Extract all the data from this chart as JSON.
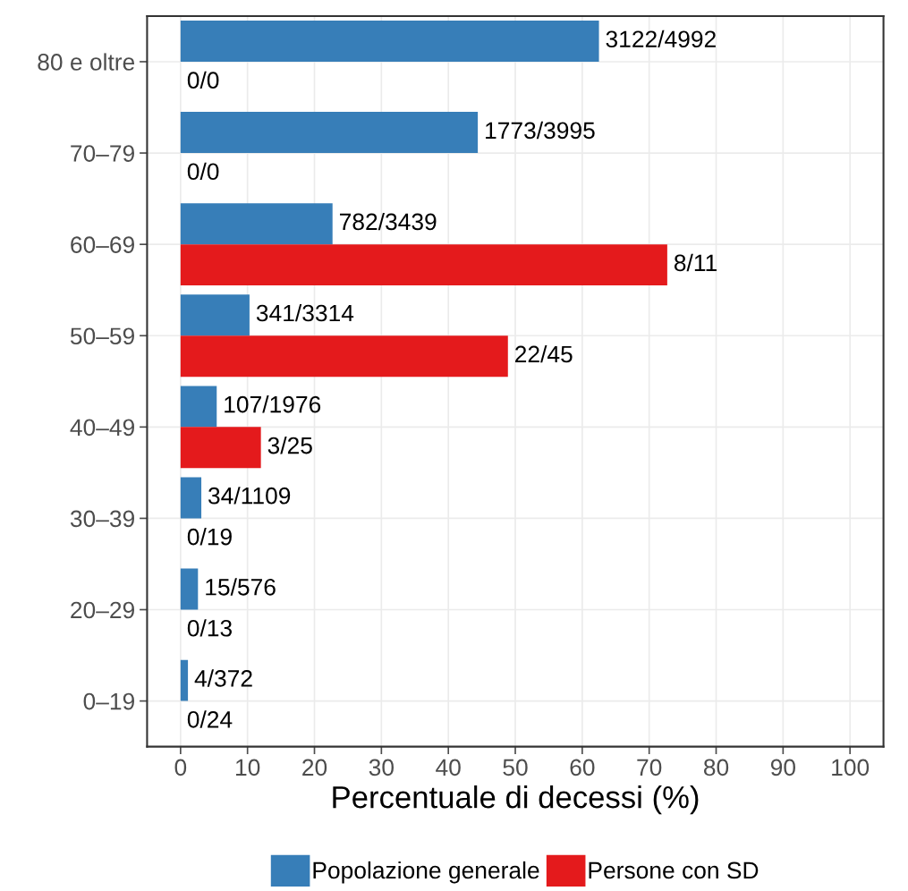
{
  "chart_data": {
    "type": "bar",
    "orientation": "horizontal",
    "xlabel": "Percentuale di decessi (%)",
    "categories": [
      "80 e oltre",
      "70–79",
      "60–69",
      "50–59",
      "40–49",
      "30–39",
      "20–29",
      "0–19"
    ],
    "series": [
      {
        "name": "Popolazione generale",
        "color": "#377eb8",
        "values": [
          62.5,
          44.4,
          22.7,
          10.3,
          5.4,
          3.1,
          2.6,
          1.1
        ],
        "value_labels": [
          "3122/4992",
          "1773/3995",
          "782/3439",
          "341/3314",
          "107/1976",
          "34/1109",
          "15/576",
          "4/372"
        ]
      },
      {
        "name": "Persone con SD",
        "color": "#e41a1c",
        "values": [
          0,
          0,
          72.7,
          48.9,
          12,
          0,
          0,
          0
        ],
        "value_labels": [
          "0/0",
          "0/0",
          "8/11",
          "22/45",
          "3/25",
          "0/19",
          "0/13",
          "0/24"
        ]
      }
    ],
    "xlim": [
      -5,
      105
    ],
    "xticks": [
      0,
      10,
      20,
      30,
      40,
      50,
      60,
      70,
      80,
      90,
      100
    ],
    "grid": true,
    "legend": "bottom"
  }
}
